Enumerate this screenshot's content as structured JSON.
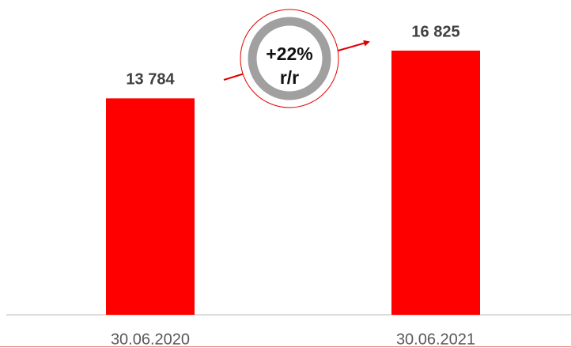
{
  "chart_data": {
    "type": "bar",
    "categories": [
      "30.06.2020",
      "30.06.2021"
    ],
    "values": [
      13784,
      16825
    ],
    "value_labels": [
      "13 784",
      "16 825"
    ],
    "color": "#ff0000",
    "annotations": [
      "+22%",
      "r/r"
    ]
  }
}
